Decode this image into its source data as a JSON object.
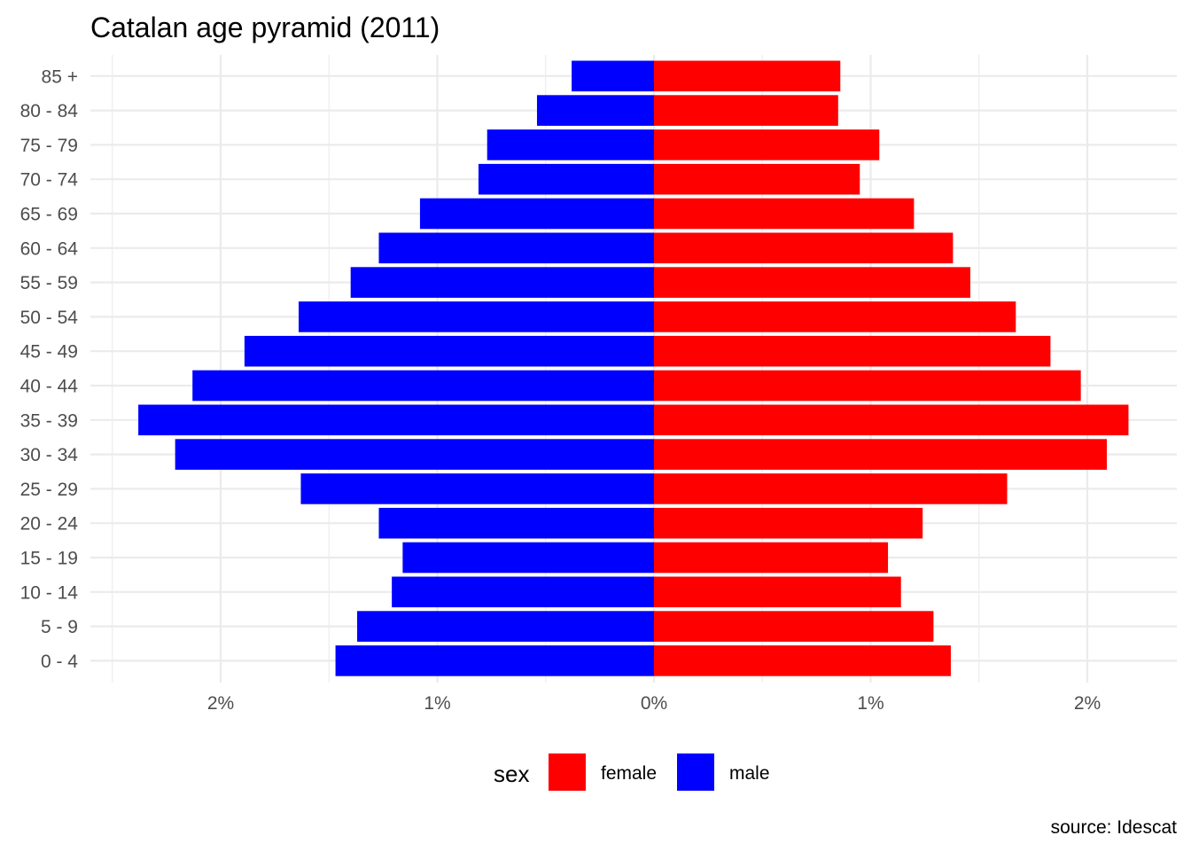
{
  "chart_data": {
    "type": "bar",
    "orientation": "horizontal",
    "stacking": "diverging",
    "title": "Catalan age pyramid (2011)",
    "caption": "source: Idescat",
    "categories": [
      "0 - 4",
      "5 - 9",
      "10 - 14",
      "15 - 19",
      "20 - 24",
      "25 - 29",
      "30 - 34",
      "35 - 39",
      "40 - 44",
      "45 - 49",
      "50 - 54",
      "55 - 59",
      "60 - 64",
      "65 - 69",
      "70 - 74",
      "75 - 79",
      "80 - 84",
      "85 +"
    ],
    "series": [
      {
        "name": "female",
        "color": "#ff0000",
        "values": [
          1.37,
          1.29,
          1.14,
          1.08,
          1.24,
          1.63,
          2.09,
          2.19,
          1.97,
          1.83,
          1.67,
          1.46,
          1.38,
          1.2,
          0.95,
          1.04,
          0.85,
          0.86
        ]
      },
      {
        "name": "male",
        "color": "#0000ff",
        "values": [
          -1.47,
          -1.37,
          -1.21,
          -1.16,
          -1.27,
          -1.63,
          -2.21,
          -2.38,
          -2.13,
          -1.89,
          -1.64,
          -1.4,
          -1.27,
          -1.08,
          -0.81,
          -0.77,
          -0.54,
          -0.38
        ]
      }
    ],
    "xlim": [
      -2.5,
      2.4
    ],
    "xticks": [
      {
        "value": -2,
        "label": "2%"
      },
      {
        "value": -1,
        "label": "1%"
      },
      {
        "value": 0,
        "label": "0%"
      },
      {
        "value": 1,
        "label": "1%"
      },
      {
        "value": 2,
        "label": "2%"
      }
    ],
    "xlabel": "",
    "ylabel": "",
    "grid": true,
    "legend": {
      "title": "sex",
      "position": "bottom",
      "entries": [
        "female",
        "male"
      ]
    }
  }
}
